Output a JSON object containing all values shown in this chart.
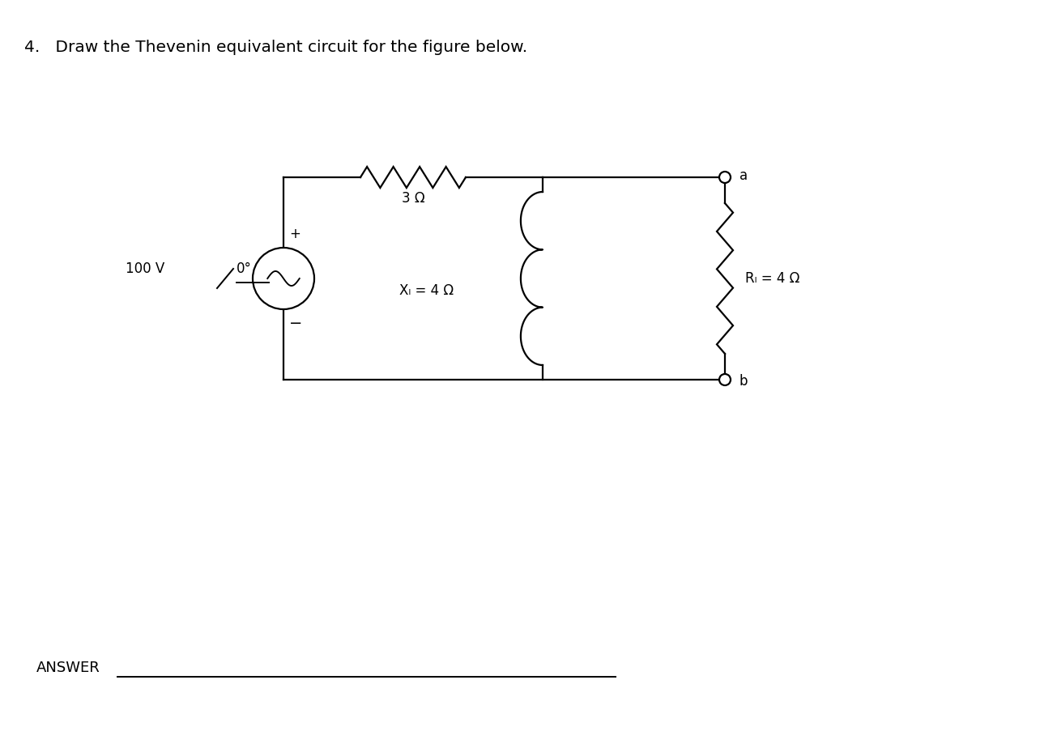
{
  "title": "4.   Draw the Thevenin equivalent circuit for the figure below.",
  "title_fontsize": 14.5,
  "answer_text": "ANSWER",
  "bg_color": "#ffffff",
  "text_color": "#000000",
  "line_color": "#000000",
  "source_label": "100 V",
  "angle_label": "0°",
  "resistor_top_label": "3 Ω",
  "inductor_label": "Xₗ = 4 Ω",
  "load_label": "Rₗ = 4 Ω",
  "terminal_a": "a",
  "terminal_b": "b",
  "plus_label": "+",
  "minus_label": "−"
}
